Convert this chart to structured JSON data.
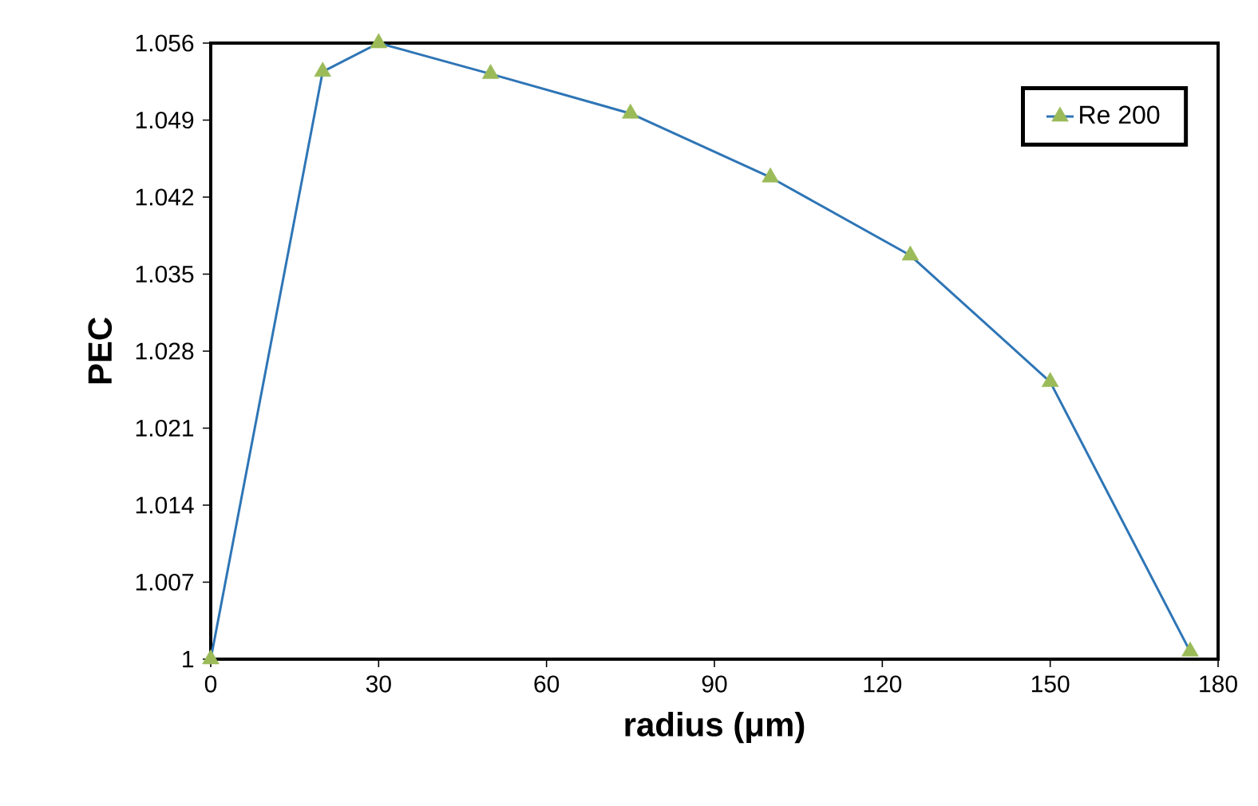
{
  "chart_data": {
    "type": "line",
    "xlabel": "radius (μm)",
    "ylabel": "PEC",
    "x": [
      0,
      20,
      30,
      50,
      75,
      100,
      125,
      150,
      175
    ],
    "series": [
      {
        "name": "Re 200",
        "color": "#2e75b6",
        "colors": [
          "#9bbb59",
          "#9bbb59",
          "#9bbb59",
          "#9bbb59",
          "#9bbb59",
          "#9bbb59",
          "#9bbb59",
          "#9bbb59",
          "#9bbb59"
        ],
        "values": [
          1.0,
          1.0534,
          1.056,
          1.0532,
          1.0496,
          1.0438,
          1.0367,
          1.0252,
          1.0007
        ]
      }
    ],
    "xlim": [
      0,
      180
    ],
    "xticks": [
      0,
      30,
      60,
      90,
      120,
      150,
      180
    ],
    "ylim": [
      1,
      1.056
    ],
    "yticks": [
      1,
      1.007,
      1.014,
      1.021,
      1.028,
      1.035,
      1.042,
      1.049,
      1.056
    ],
    "marker": "triangle",
    "line_style": "solid",
    "grid": false,
    "legend": "top right"
  }
}
